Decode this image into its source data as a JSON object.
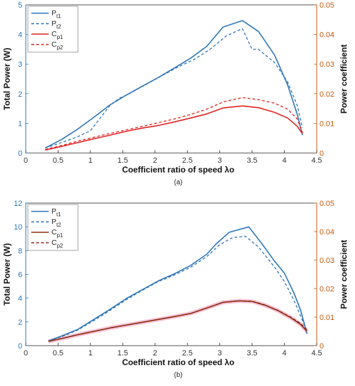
{
  "colors": {
    "pt_series": "#2e75b6",
    "cp_a": "#e02020",
    "cp_b": "#8b2a10",
    "cp_b_highlight": "#f2b8cf",
    "left_axis": "#2e75b6",
    "right_axis": "#c55a11"
  },
  "chart_data": [
    {
      "type": "line",
      "panel_label": "(a)",
      "xlabel": "Coefficient ratio of speed  λo",
      "ylabel": "Total Power (W)",
      "y2label": "Power coefficient",
      "xlim": [
        0,
        4.5
      ],
      "xticks": [
        "0",
        "0.5",
        "1",
        "1.5",
        "2",
        "2.5",
        "3",
        "3.5",
        "4",
        "4.5"
      ],
      "ylim": [
        0,
        5
      ],
      "yticks": [
        "0",
        "1",
        "2",
        "3",
        "4",
        "5"
      ],
      "y2lim": [
        0,
        0.05
      ],
      "y2ticks": [
        "0",
        "0.01",
        "0.02",
        "0.03",
        "0.04",
        "0.05"
      ],
      "legend_position": "top-left",
      "series": [
        {
          "name": "P",
          "sub": "t1",
          "axis": "left",
          "style": "solid",
          "color": "#2e75b6",
          "x": [
            0.3,
            0.55,
            0.8,
            1.05,
            1.3,
            1.55,
            1.8,
            2.05,
            2.3,
            2.55,
            2.8,
            3.05,
            3.35,
            3.6,
            3.85,
            4.05,
            4.2,
            4.28
          ],
          "y": [
            0.17,
            0.45,
            0.8,
            1.2,
            1.62,
            1.95,
            2.25,
            2.55,
            2.87,
            3.2,
            3.6,
            4.25,
            4.47,
            4.1,
            3.3,
            2.3,
            1.3,
            0.6
          ]
        },
        {
          "name": "P",
          "sub": "t2",
          "axis": "left",
          "style": "dashed",
          "color": "#2e75b6",
          "x": [
            0.3,
            0.55,
            0.8,
            1.0,
            1.3,
            1.45,
            1.6,
            1.85,
            2.1,
            2.35,
            2.6,
            2.85,
            3.1,
            3.35,
            3.5,
            3.6,
            3.85,
            4.05,
            4.2,
            4.28
          ],
          "y": [
            0.17,
            0.35,
            0.55,
            0.75,
            1.6,
            1.85,
            2.0,
            2.3,
            2.6,
            2.9,
            3.15,
            3.5,
            3.95,
            4.2,
            3.5,
            3.5,
            3.05,
            2.4,
            1.6,
            0.85
          ]
        },
        {
          "name": "C",
          "sub": "p1",
          "axis": "right",
          "style": "solid",
          "color": "#e02020",
          "x": [
            0.3,
            0.55,
            0.8,
            1.05,
            1.3,
            1.55,
            1.8,
            2.05,
            2.3,
            2.55,
            2.8,
            3.05,
            3.35,
            3.6,
            3.85,
            4.05,
            4.2,
            4.28
          ],
          "y": [
            0.001,
            0.0022,
            0.0035,
            0.0048,
            0.006,
            0.0073,
            0.0084,
            0.0093,
            0.0105,
            0.0118,
            0.0132,
            0.0152,
            0.0159,
            0.0153,
            0.0137,
            0.0118,
            0.009,
            0.0065
          ]
        },
        {
          "name": "C",
          "sub": "p2",
          "axis": "right",
          "style": "dashed",
          "color": "#e02020",
          "x": [
            0.3,
            0.55,
            0.8,
            1.05,
            1.3,
            1.55,
            1.8,
            2.05,
            2.3,
            2.55,
            2.8,
            3.05,
            3.35,
            3.6,
            3.85,
            4.05,
            4.2,
            4.28
          ],
          "y": [
            0.0012,
            0.0025,
            0.004,
            0.0053,
            0.0066,
            0.0078,
            0.009,
            0.0102,
            0.0115,
            0.013,
            0.0148,
            0.0172,
            0.0187,
            0.018,
            0.0168,
            0.0148,
            0.0115,
            0.0068
          ]
        }
      ]
    },
    {
      "type": "line",
      "panel_label": "(b)",
      "xlabel": "Coefficient ratio of speed  λo",
      "ylabel": "Total Power (W)",
      "y2label": "Power coefficient",
      "xlim": [
        0,
        4.5
      ],
      "xticks": [
        "0",
        "0.5",
        "1",
        "1.5",
        "2",
        "2.5",
        "3",
        "3.5",
        "4",
        "4.5"
      ],
      "ylim": [
        0,
        12
      ],
      "yticks": [
        "0",
        "2",
        "4",
        "6",
        "8",
        "10",
        "12"
      ],
      "y2lim": [
        0,
        0.05
      ],
      "y2ticks": [
        "0",
        "0.01",
        "0.02",
        "0.03",
        "0.04",
        "0.05"
      ],
      "legend_position": "top-left",
      "series": [
        {
          "name": "P",
          "sub": "t1",
          "axis": "left",
          "style": "solid",
          "color": "#2e75b6",
          "x": [
            0.35,
            0.55,
            0.8,
            1.05,
            1.3,
            1.55,
            1.8,
            2.05,
            2.3,
            2.55,
            2.8,
            2.95,
            3.15,
            3.45,
            3.65,
            3.85,
            4.0,
            4.15,
            4.25,
            4.35
          ],
          "y": [
            0.4,
            0.8,
            1.35,
            2.2,
            3.05,
            3.95,
            4.7,
            5.45,
            6.05,
            6.75,
            7.7,
            8.6,
            9.55,
            10.0,
            8.6,
            7.1,
            6.1,
            4.4,
            3.0,
            1.0
          ]
        },
        {
          "name": "P",
          "sub": "t2",
          "axis": "left",
          "style": "dashed",
          "color": "#2e75b6",
          "x": [
            0.35,
            0.55,
            0.8,
            1.05,
            1.3,
            1.55,
            1.8,
            2.05,
            2.3,
            2.55,
            2.8,
            3.0,
            3.2,
            3.4,
            3.6,
            3.85,
            4.0,
            4.15,
            4.25,
            4.35
          ],
          "y": [
            0.4,
            0.75,
            1.3,
            2.1,
            2.95,
            3.85,
            4.65,
            5.4,
            5.95,
            6.6,
            7.5,
            8.5,
            9.1,
            9.2,
            8.3,
            6.6,
            5.4,
            3.8,
            2.5,
            1.2
          ]
        },
        {
          "name": "C",
          "sub": "p1",
          "axis": "right",
          "style": "solid",
          "color": "#8b2a10",
          "x": [
            0.35,
            0.55,
            0.8,
            1.05,
            1.3,
            1.55,
            1.8,
            2.05,
            2.3,
            2.55,
            2.8,
            3.05,
            3.3,
            3.5,
            3.7,
            3.9,
            4.1,
            4.25,
            4.35
          ],
          "y": [
            0.0015,
            0.0025,
            0.0038,
            0.005,
            0.0062,
            0.0072,
            0.0082,
            0.0092,
            0.0102,
            0.0113,
            0.0132,
            0.0152,
            0.0157,
            0.0155,
            0.0142,
            0.0123,
            0.0098,
            0.0075,
            0.005
          ]
        },
        {
          "name": "C",
          "sub": "p2",
          "axis": "right",
          "style": "dashed",
          "color": "#8b2a10",
          "x": [
            0.35,
            0.55,
            0.8,
            1.05,
            1.3,
            1.55,
            1.8,
            2.05,
            2.3,
            2.55,
            2.8,
            3.05,
            3.3,
            3.5,
            3.7,
            3.9,
            4.1,
            4.25,
            4.35
          ],
          "y": [
            0.0015,
            0.0025,
            0.0038,
            0.005,
            0.0062,
            0.0072,
            0.0082,
            0.0092,
            0.0102,
            0.0113,
            0.0132,
            0.0152,
            0.0157,
            0.0156,
            0.0143,
            0.0124,
            0.01,
            0.0078,
            0.0055
          ]
        }
      ]
    }
  ]
}
